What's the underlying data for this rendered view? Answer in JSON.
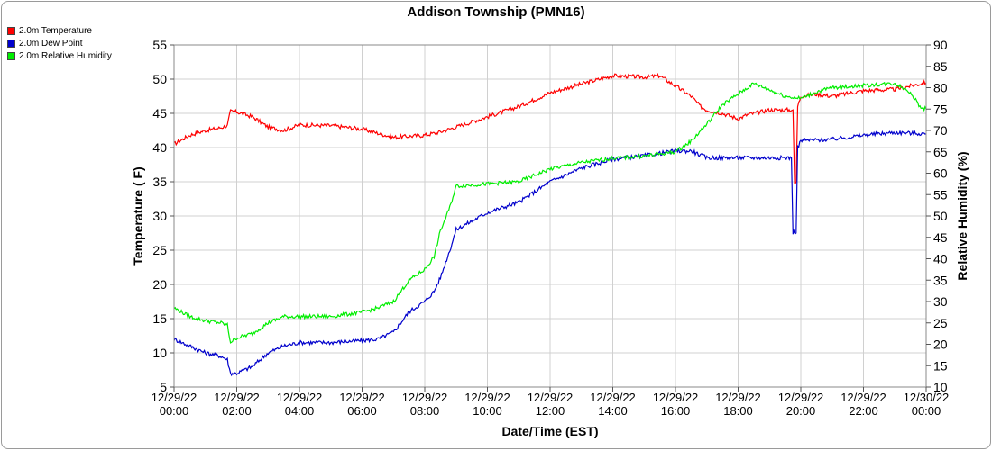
{
  "chart_data": {
    "type": "line",
    "title": "Addison Township (PMN16)",
    "xlabel": "Date/Time (EST)",
    "ylabel": "Temperature ( F)",
    "y2label": "Relative Humidity (%)",
    "ylim": [
      5,
      55
    ],
    "y2lim": [
      10,
      90
    ],
    "yticks": [
      5,
      10,
      15,
      20,
      25,
      30,
      35,
      40,
      45,
      50,
      55
    ],
    "y2ticks": [
      10,
      15,
      20,
      25,
      30,
      35,
      40,
      45,
      50,
      55,
      60,
      65,
      70,
      75,
      80,
      85,
      90
    ],
    "xlim": [
      0,
      24
    ],
    "xticks": [
      {
        "date": "12/29/22",
        "time": "00:00",
        "hour": 0
      },
      {
        "date": "12/29/22",
        "time": "02:00",
        "hour": 2
      },
      {
        "date": "12/29/22",
        "time": "04:00",
        "hour": 4
      },
      {
        "date": "12/29/22",
        "time": "06:00",
        "hour": 6
      },
      {
        "date": "12/29/22",
        "time": "08:00",
        "hour": 8
      },
      {
        "date": "12/29/22",
        "time": "10:00",
        "hour": 10
      },
      {
        "date": "12/29/22",
        "time": "12:00",
        "hour": 12
      },
      {
        "date": "12/29/22",
        "time": "14:00",
        "hour": 14
      },
      {
        "date": "12/29/22",
        "time": "16:00",
        "hour": 16
      },
      {
        "date": "12/29/22",
        "time": "18:00",
        "hour": 18
      },
      {
        "date": "12/29/22",
        "time": "20:00",
        "hour": 20
      },
      {
        "date": "12/29/22",
        "time": "22:00",
        "hour": 22
      },
      {
        "date": "12/30/22",
        "time": "00:00",
        "hour": 24
      }
    ],
    "grid": true,
    "legend_position": "top-left",
    "series": [
      {
        "name": "2.0m Temperature",
        "color": "#ff0000",
        "axis": "left",
        "x": [
          0,
          0.5,
          1,
          1.4,
          1.7,
          1.8,
          2.0,
          2.5,
          3.0,
          3.5,
          4.0,
          5.0,
          6.0,
          7.0,
          8.0,
          8.5,
          9.0,
          10.0,
          11.0,
          12.0,
          13.0,
          14.0,
          15.0,
          15.5,
          16.0,
          16.5,
          16.8,
          17.0,
          17.5,
          18.0,
          18.3,
          18.5,
          19.0,
          19.5,
          19.75,
          19.8,
          19.85,
          19.9,
          20.0,
          20.5,
          21.0,
          22.0,
          23.0,
          23.5,
          24.0
        ],
        "y": [
          40.5,
          41.8,
          42.5,
          42.8,
          43.2,
          45.3,
          45.2,
          44.5,
          43.0,
          42.5,
          43.3,
          43.2,
          42.7,
          41.5,
          41.8,
          42.3,
          43.0,
          44.5,
          46.0,
          48.0,
          49.3,
          50.5,
          50.3,
          50.5,
          49.0,
          47.5,
          46.0,
          45.5,
          45.0,
          44.2,
          44.8,
          45.0,
          45.5,
          45.5,
          45.5,
          34.5,
          35.0,
          46.0,
          47.5,
          47.8,
          47.5,
          48.3,
          48.5,
          49.0,
          49.5
        ]
      },
      {
        "name": "2.0m Dew Point",
        "color": "#0000cc",
        "axis": "left",
        "x": [
          0,
          0.5,
          1,
          1.5,
          1.7,
          1.8,
          2.0,
          2.5,
          3.0,
          3.5,
          4.0,
          5.0,
          6.0,
          6.5,
          7.0,
          7.5,
          8.0,
          8.3,
          8.5,
          8.8,
          9.0,
          10.0,
          11.0,
          12.0,
          13.0,
          14.0,
          15.0,
          16.0,
          16.5,
          17.0,
          18.0,
          19.0,
          19.7,
          19.75,
          19.8,
          19.85,
          19.9,
          20.0,
          21.0,
          22.0,
          23.0,
          24.0
        ],
        "y": [
          12.0,
          11.0,
          10.0,
          9.5,
          9.0,
          7.0,
          7.0,
          8.0,
          10.0,
          11.0,
          11.5,
          11.5,
          11.8,
          12.0,
          13.0,
          16.0,
          17.5,
          19.0,
          21.0,
          25.0,
          28.0,
          30.5,
          32.0,
          35.0,
          37.0,
          38.3,
          38.8,
          39.5,
          39.5,
          38.5,
          38.5,
          38.5,
          38.5,
          27.5,
          27.8,
          27.5,
          40.0,
          41.0,
          41.2,
          41.8,
          42.2,
          42.0
        ]
      },
      {
        "name": "2.0m Relative Humidity",
        "color": "#00ee00",
        "axis": "right",
        "x": [
          0,
          0.5,
          1.0,
          1.5,
          1.7,
          1.8,
          2.0,
          2.5,
          3.0,
          3.5,
          4.0,
          5.0,
          6.0,
          6.5,
          7.0,
          7.5,
          8.0,
          8.3,
          8.5,
          8.8,
          9.0,
          10.0,
          11.0,
          12.0,
          13.0,
          14.0,
          15.0,
          16.0,
          16.5,
          17.0,
          17.5,
          18.0,
          18.5,
          19.0,
          19.5,
          20.0,
          20.5,
          21.0,
          22.0,
          23.0,
          23.5,
          23.8,
          24.0
        ],
        "y": [
          28.5,
          26.5,
          25.5,
          25.0,
          24.5,
          20.5,
          21.5,
          22.5,
          25.0,
          26.5,
          26.5,
          26.5,
          27.5,
          28.5,
          30.0,
          35.0,
          37.5,
          40.5,
          46.5,
          52.0,
          57.0,
          57.5,
          58.0,
          61.0,
          62.5,
          63.5,
          64.0,
          65.0,
          67.5,
          71.5,
          76.0,
          78.5,
          81.0,
          79.5,
          78.0,
          77.5,
          79.0,
          80.0,
          80.5,
          81.0,
          79.0,
          75.5,
          75.0
        ]
      }
    ]
  }
}
